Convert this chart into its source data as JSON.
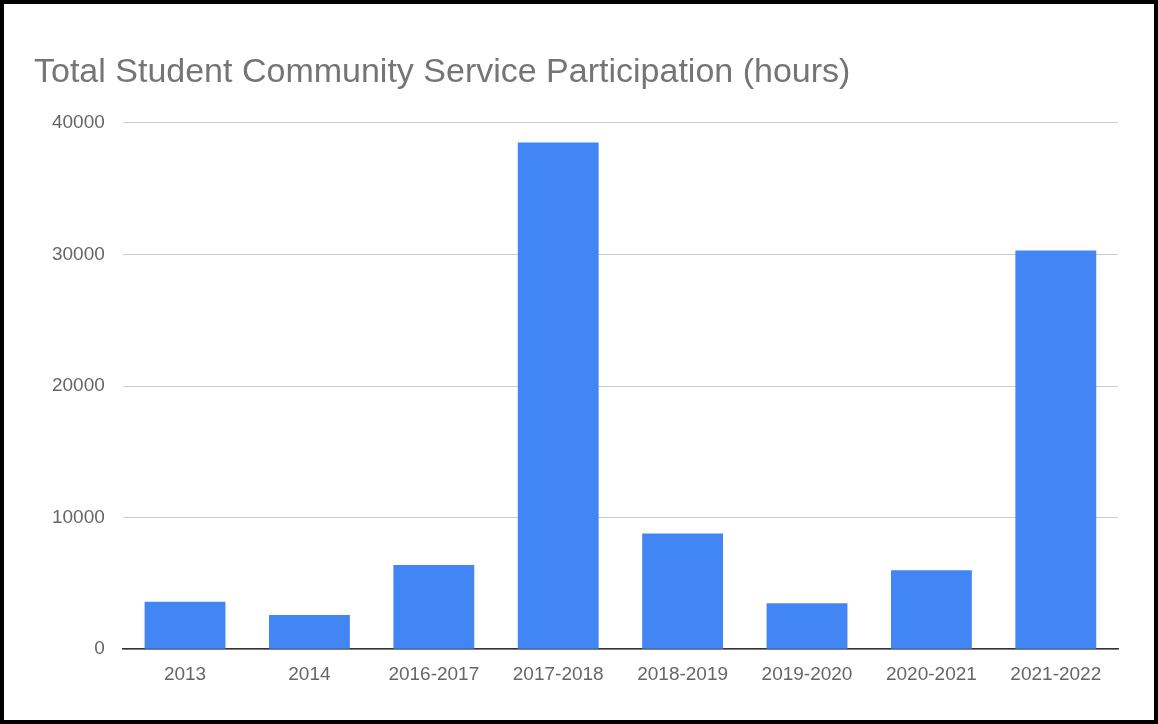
{
  "chart_data": {
    "type": "bar",
    "title": "Total Student Community Service Participation (hours)",
    "categories": [
      "2013",
      "2014",
      "2016-2017",
      "2017-2018",
      "2018-2019",
      "2019-2020",
      "2020-2021",
      "2021-2022"
    ],
    "values": [
      3600,
      2600,
      6400,
      38500,
      8800,
      3500,
      6000,
      30300
    ],
    "color": "#4285f4",
    "ylim": [
      0,
      40000
    ],
    "yticks": [
      0,
      10000,
      20000,
      30000,
      40000
    ],
    "grid": "y"
  }
}
